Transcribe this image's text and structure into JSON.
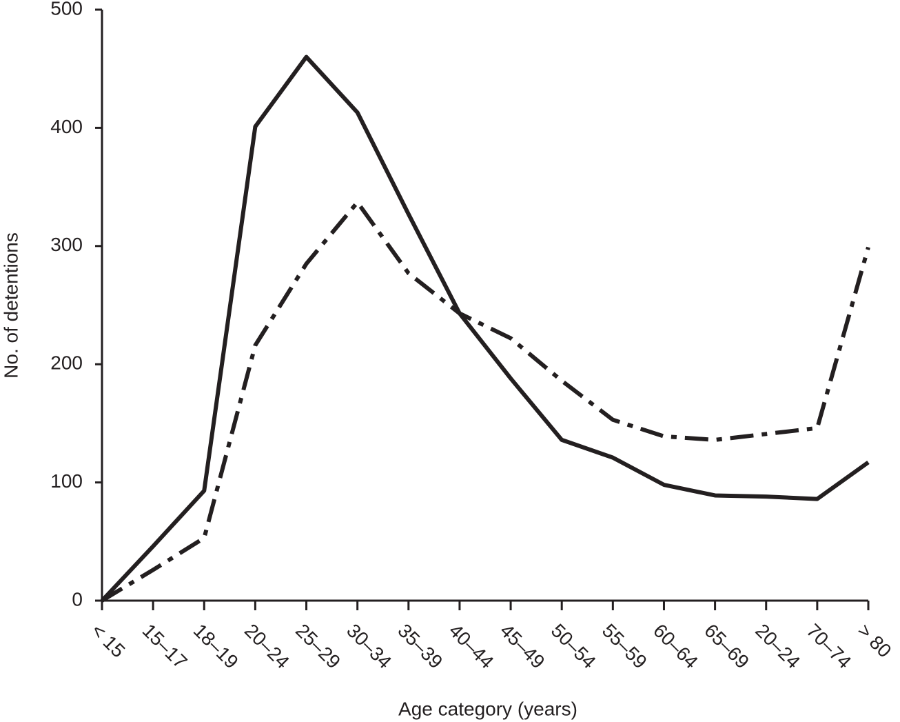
{
  "chart_data": {
    "type": "line",
    "x_label": "Age category (years)",
    "y_label": "No. of detentions",
    "categories": [
      "< 15",
      "15–17",
      "18–19",
      "20–24",
      "25–29",
      "30–34",
      "35–39",
      "40–44",
      "45–49",
      "50–54",
      "55–59",
      "60–64",
      "65–69",
      "20–24",
      "70–74",
      "> 80"
    ],
    "series": [
      {
        "color": "#231f20",
        "style": "solid",
        "values": [
          0,
          46,
          93,
          401,
          460,
          413,
          327,
          243,
          188,
          136,
          121,
          98,
          89,
          88,
          86,
          117
        ]
      },
      {
        "color": "#231f20",
        "style": "dash-dot",
        "values": [
          0,
          26,
          53,
          216,
          285,
          337,
          277,
          243,
          222,
          186,
          153,
          139,
          136,
          141,
          146,
          299
        ]
      }
    ],
    "ylim": [
      0,
      500
    ],
    "yticks": [
      0,
      100,
      200,
      300,
      400,
      500
    ],
    "grid": false
  }
}
